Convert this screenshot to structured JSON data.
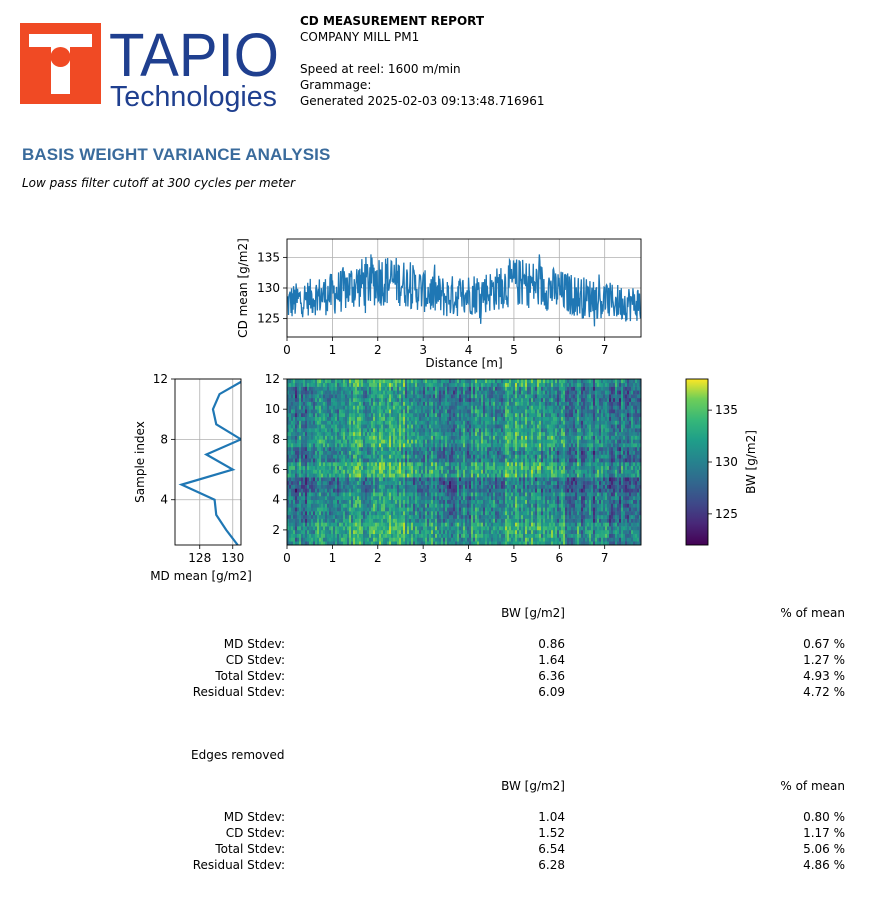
{
  "logo": {
    "brand": "TAPIO",
    "sub": "Technologies",
    "colors": {
      "red": "#f04a24",
      "blue": "#1f3f8f"
    }
  },
  "header": {
    "title": "CD MEASUREMENT REPORT",
    "company": "COMPANY MILL PM1",
    "speed": "Speed at reel: 1600 m/min",
    "grammage": "Grammage:",
    "generated": "Generated 2025-02-03 09:13:48.716961"
  },
  "section": {
    "title": "BASIS WEIGHT VARIANCE ANALYSIS",
    "subtitle": "Low pass filter cutoff at 300 cycles per meter"
  },
  "chart_data": [
    {
      "type": "line",
      "name": "cd-mean",
      "ylabel": "CD mean [g/m2]",
      "xlabel": "Distance [m]",
      "xlim": [
        0,
        7.8
      ],
      "ylim": [
        122,
        138
      ],
      "xticks": [
        "0",
        "1",
        "2",
        "3",
        "4",
        "5",
        "6",
        "7"
      ],
      "yticks": [
        "125",
        "130",
        "135"
      ],
      "grid": true,
      "color": "#1f77b4",
      "envelope": {
        "x": [
          0,
          0.5,
          1.0,
          1.5,
          2.0,
          2.5,
          3.0,
          3.5,
          4.0,
          4.5,
          5.0,
          5.5,
          6.0,
          6.5,
          7.0,
          7.5,
          7.8
        ],
        "mean": [
          127.5,
          128.5,
          129,
          130.5,
          131.5,
          131,
          129.5,
          128.5,
          129,
          129.5,
          131,
          130.5,
          129.5,
          128.5,
          128,
          127.5,
          127.5
        ],
        "amp": [
          3,
          3,
          3.5,
          4,
          4.5,
          4,
          3.5,
          3.5,
          3.5,
          3.5,
          4,
          4,
          3.5,
          3.5,
          3,
          3,
          3
        ]
      }
    },
    {
      "type": "line",
      "name": "md-mean",
      "ylabel": "Sample index",
      "xlabel": "MD mean [g/m2]",
      "xlim": [
        126.5,
        130.5
      ],
      "ylim": [
        1,
        12
      ],
      "xticks": [
        "128",
        "130"
      ],
      "yticks": [
        "4",
        "8",
        "12"
      ],
      "grid": true,
      "color": "#1f77b4",
      "points": [
        {
          "x": 130.3,
          "y": 1
        },
        {
          "x": 129.6,
          "y": 2
        },
        {
          "x": 129.0,
          "y": 3
        },
        {
          "x": 128.9,
          "y": 4
        },
        {
          "x": 126.9,
          "y": 5
        },
        {
          "x": 130.0,
          "y": 6
        },
        {
          "x": 128.4,
          "y": 7
        },
        {
          "x": 130.5,
          "y": 8
        },
        {
          "x": 129.0,
          "y": 9
        },
        {
          "x": 128.8,
          "y": 10
        },
        {
          "x": 129.2,
          "y": 11
        },
        {
          "x": 130.8,
          "y": 12
        }
      ]
    },
    {
      "type": "heatmap",
      "name": "bw-map",
      "xlim": [
        0,
        7.8
      ],
      "ylim": [
        1,
        12
      ],
      "xticks": [
        "0",
        "1",
        "2",
        "3",
        "4",
        "5",
        "6",
        "7"
      ],
      "yticks": [
        "2",
        "4",
        "6",
        "8",
        "10",
        "12"
      ],
      "colormap": "viridis",
      "colorbar": {
        "label": "BW [g/m2]",
        "ticks": [
          "125",
          "130",
          "135"
        ],
        "range": [
          122,
          138
        ]
      },
      "row_means": [
        130.5,
        131,
        129.5,
        129.5,
        128,
        131.5,
        129,
        131,
        130,
        129.5,
        129,
        131
      ]
    }
  ],
  "table1": {
    "headers": [
      "BW [g/m2]",
      "% of mean"
    ],
    "rows": [
      {
        "label": "MD Stdev:",
        "bw": "0.86",
        "pct": "0.67 %"
      },
      {
        "label": "CD Stdev:",
        "bw": "1.64",
        "pct": "1.27 %"
      },
      {
        "label": "Total Stdev:",
        "bw": "6.36",
        "pct": "4.93 %"
      },
      {
        "label": "Residual Stdev:",
        "bw": "6.09",
        "pct": "4.72 %"
      }
    ]
  },
  "edges_label": "Edges removed",
  "table2": {
    "headers": [
      "BW [g/m2]",
      "% of mean"
    ],
    "rows": [
      {
        "label": "MD Stdev:",
        "bw": "1.04",
        "pct": "0.80 %"
      },
      {
        "label": "CD Stdev:",
        "bw": "1.52",
        "pct": "1.17 %"
      },
      {
        "label": "Total Stdev:",
        "bw": "6.54",
        "pct": "5.06 %"
      },
      {
        "label": "Residual Stdev:",
        "bw": "6.28",
        "pct": "4.86 %"
      }
    ]
  }
}
